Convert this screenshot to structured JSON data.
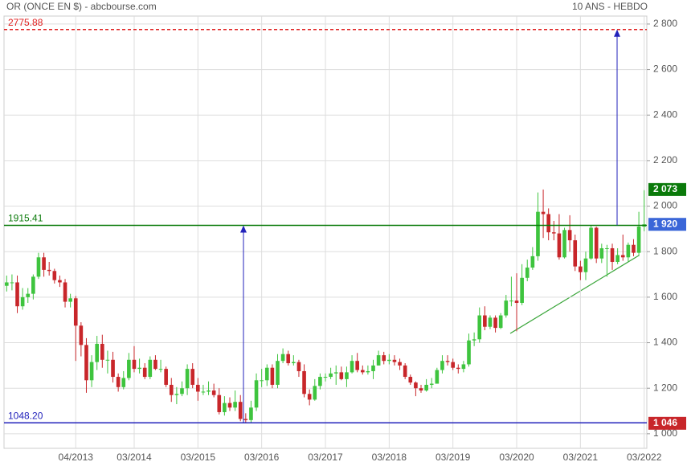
{
  "chart_data": {
    "type": "candlestick",
    "title": "OR (ONCE EN $) - abcbourse.com",
    "subtitle": "10 ANS - HEBDO",
    "categories": [
      null,
      null,
      null,
      null,
      null,
      null,
      null,
      null,
      null,
      null,
      null,
      null,
      null,
      "04/2013",
      null,
      null,
      null,
      null,
      null,
      null,
      null,
      null,
      null,
      null,
      "03/2014",
      null,
      null,
      null,
      null,
      null,
      null,
      null,
      null,
      null,
      null,
      null,
      "03/2015",
      null,
      null,
      null,
      null,
      null,
      null,
      null,
      null,
      null,
      null,
      null,
      "03/2016",
      null,
      null,
      null,
      null,
      null,
      null,
      null,
      null,
      null,
      null,
      null,
      "03/2017",
      null,
      null,
      null,
      null,
      null,
      null,
      null,
      null,
      null,
      null,
      null,
      "03/2018",
      null,
      null,
      null,
      null,
      null,
      null,
      null,
      null,
      null,
      null,
      null,
      "03/2019",
      null,
      null,
      null,
      null,
      null,
      null,
      null,
      null,
      null,
      null,
      null,
      "03/2020",
      null,
      null,
      null,
      null,
      null,
      null,
      null,
      null,
      null,
      null,
      null,
      "03/2021",
      null,
      null,
      null,
      null,
      null,
      null,
      null,
      null,
      null,
      null,
      null,
      "03/2022"
    ],
    "open": [
      1650,
      1665,
      1665,
      1560,
      1600,
      1615,
      1690,
      1775,
      1720,
      1715,
      1675,
      1665,
      1580,
      1595,
      1475,
      1390,
      1235,
      1315,
      1395,
      1325,
      1325,
      1250,
      1205,
      1245,
      1325,
      1285,
      1290,
      1250,
      1325,
      1285,
      1285,
      1215,
      1170,
      1175,
      1200,
      1285,
      1215,
      1185,
      1185,
      1190,
      1170,
      1095,
      1135,
      1115,
      1140,
      1065,
      1060,
      1115,
      1235,
      1235,
      1290,
      1215,
      1320,
      1350,
      1310,
      1315,
      1275,
      1175,
      1150,
      1210,
      1250,
      1250,
      1265,
      1270,
      1240,
      1270,
      1320,
      1280,
      1270,
      1275,
      1300,
      1345,
      1320,
      1325,
      1315,
      1300,
      1250,
      1225,
      1200,
      1190,
      1215,
      1220,
      1280,
      1320,
      1315,
      1290,
      1285,
      1305,
      1410,
      1415,
      1520,
      1470,
      1510,
      1465,
      1520,
      1585,
      1585,
      1575,
      1685,
      1730,
      1780,
      1975,
      1965,
      1885,
      1880,
      1775,
      1895,
      1850,
      1735,
      1710,
      1770,
      1905,
      1770,
      1815,
      1815,
      1755,
      1785,
      1775,
      1830,
      1795,
      1910
    ],
    "high": [
      1695,
      1700,
      1695,
      1640,
      1640,
      1700,
      1795,
      1795,
      1755,
      1725,
      1695,
      1680,
      1615,
      1605,
      1490,
      1420,
      1345,
      1430,
      1435,
      1365,
      1360,
      1265,
      1275,
      1355,
      1385,
      1330,
      1310,
      1340,
      1345,
      1325,
      1295,
      1245,
      1205,
      1230,
      1305,
      1310,
      1245,
      1215,
      1230,
      1220,
      1200,
      1165,
      1160,
      1190,
      1170,
      1090,
      1145,
      1265,
      1285,
      1305,
      1305,
      1350,
      1375,
      1365,
      1345,
      1325,
      1305,
      1195,
      1240,
      1265,
      1265,
      1290,
      1300,
      1295,
      1295,
      1345,
      1355,
      1300,
      1300,
      1325,
      1365,
      1360,
      1350,
      1345,
      1330,
      1310,
      1260,
      1230,
      1215,
      1240,
      1245,
      1290,
      1345,
      1345,
      1330,
      1305,
      1320,
      1440,
      1445,
      1555,
      1560,
      1520,
      1520,
      1530,
      1610,
      1690,
      1705,
      1745,
      1765,
      1820,
      2060,
      2073,
      1990,
      1935,
      1965,
      1905,
      1960,
      1875,
      1760,
      1800,
      1915,
      1910,
      1835,
      1830,
      1835,
      1815,
      1875,
      1840,
      1855,
      1975,
      2070
    ],
    "low": [
      1625,
      1630,
      1530,
      1545,
      1575,
      1590,
      1680,
      1690,
      1695,
      1660,
      1645,
      1555,
      1555,
      1320,
      1340,
      1180,
      1205,
      1280,
      1290,
      1265,
      1225,
      1185,
      1195,
      1235,
      1270,
      1265,
      1240,
      1240,
      1280,
      1270,
      1205,
      1140,
      1130,
      1165,
      1170,
      1200,
      1145,
      1170,
      1170,
      1160,
      1085,
      1080,
      1100,
      1100,
      1055,
      1046,
      1050,
      1100,
      1205,
      1210,
      1200,
      1200,
      1310,
      1300,
      1300,
      1250,
      1160,
      1125,
      1145,
      1195,
      1230,
      1240,
      1215,
      1235,
      1205,
      1265,
      1270,
      1260,
      1260,
      1240,
      1300,
      1305,
      1305,
      1300,
      1280,
      1240,
      1215,
      1165,
      1180,
      1185,
      1200,
      1220,
      1265,
      1300,
      1280,
      1265,
      1270,
      1295,
      1385,
      1400,
      1455,
      1460,
      1445,
      1460,
      1510,
      1560,
      1450,
      1565,
      1670,
      1720,
      1760,
      1860,
      1850,
      1850,
      1765,
      1770,
      1800,
      1715,
      1675,
      1675,
      1765,
      1750,
      1750,
      1690,
      1720,
      1745,
      1760,
      1755,
      1780,
      1780,
      1890
    ],
    "close": [
      1665,
      1665,
      1560,
      1600,
      1615,
      1690,
      1775,
      1720,
      1715,
      1675,
      1665,
      1580,
      1595,
      1475,
      1390,
      1235,
      1315,
      1395,
      1325,
      1325,
      1250,
      1205,
      1245,
      1325,
      1285,
      1290,
      1250,
      1325,
      1285,
      1285,
      1215,
      1170,
      1175,
      1200,
      1285,
      1215,
      1185,
      1185,
      1190,
      1170,
      1095,
      1135,
      1115,
      1140,
      1065,
      1060,
      1115,
      1235,
      1235,
      1290,
      1215,
      1320,
      1350,
      1310,
      1315,
      1275,
      1175,
      1150,
      1210,
      1250,
      1250,
      1265,
      1270,
      1240,
      1270,
      1320,
      1280,
      1270,
      1275,
      1300,
      1345,
      1320,
      1325,
      1315,
      1300,
      1250,
      1225,
      1200,
      1190,
      1215,
      1220,
      1280,
      1320,
      1315,
      1290,
      1285,
      1305,
      1410,
      1415,
      1520,
      1470,
      1510,
      1465,
      1520,
      1585,
      1585,
      1575,
      1685,
      1730,
      1780,
      1975,
      1965,
      1885,
      1880,
      1775,
      1895,
      1850,
      1735,
      1710,
      1770,
      1905,
      1770,
      1815,
      1815,
      1755,
      1785,
      1775,
      1830,
      1795,
      1910,
      1920
    ],
    "up_color": "#3ec43e",
    "down_color": "#c8262a",
    "ylim": [
      936,
      2835
    ],
    "yticks": [
      {
        "value": 1000,
        "label": "1 000"
      },
      {
        "value": 1200,
        "label": "1 200"
      },
      {
        "value": 1400,
        "label": "1 400"
      },
      {
        "value": 1600,
        "label": "1 600"
      },
      {
        "value": 1800,
        "label": "1 800"
      },
      {
        "value": 2000,
        "label": "2 000"
      },
      {
        "value": 2200,
        "label": "2 200"
      },
      {
        "value": 2400,
        "label": "2 400"
      },
      {
        "value": 2600,
        "label": "2 600"
      },
      {
        "value": 2800,
        "label": "2 800"
      }
    ],
    "grid": true,
    "levels": [
      {
        "value": 2775.88,
        "label": "2775.88",
        "color": "#e02020",
        "dashed": true
      },
      {
        "value": 1915.41,
        "label": "1915.41",
        "color": "#0a7a0a",
        "dashed": false
      },
      {
        "value": 1048.2,
        "label": "1048.20",
        "color": "#2222bb",
        "dashed": false
      }
    ],
    "badges": [
      {
        "value": 2073,
        "label": "2 073",
        "color": "#0a7a0a"
      },
      {
        "value": 1920,
        "label": "1 920",
        "color": "#3a66d8"
      },
      {
        "value": 1046,
        "label": "1 046",
        "color": "#c8262a"
      }
    ]
  }
}
